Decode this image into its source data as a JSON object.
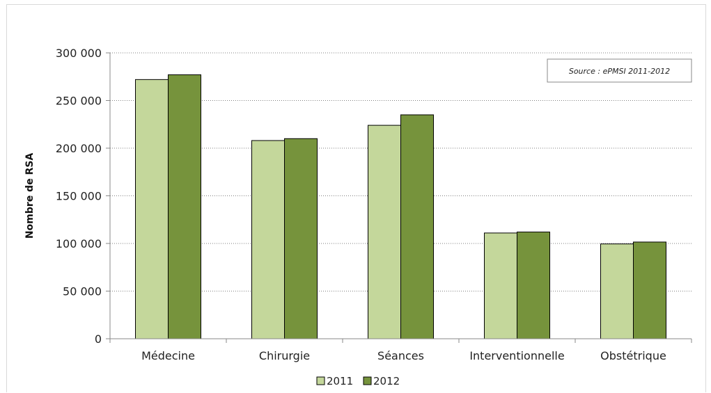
{
  "chart_data": {
    "type": "bar",
    "categories": [
      "Médecine",
      "Chirurgie",
      "Séances",
      "Interventionnelle",
      "Obstétrique"
    ],
    "series": [
      {
        "name": "2011",
        "color": "#c4d79b",
        "values": [
          272000,
          208000,
          224000,
          111000,
          99500
        ]
      },
      {
        "name": "2012",
        "color": "#76933c",
        "values": [
          277000,
          210000,
          235000,
          112000,
          101500
        ]
      }
    ],
    "ylabel": "Nombre de RSA",
    "xlabel": "",
    "ylim": [
      0,
      300000
    ],
    "yticks": [
      0,
      50000,
      100000,
      150000,
      200000,
      250000,
      300000
    ],
    "ytick_labels": [
      "0",
      "50 000",
      "100 000",
      "150 000",
      "200 000",
      "250 000",
      "300 000"
    ],
    "grid": "horizontal-dotted",
    "legend_position": "bottom",
    "annotation": "Source : ePMSI 2011-2012"
  }
}
